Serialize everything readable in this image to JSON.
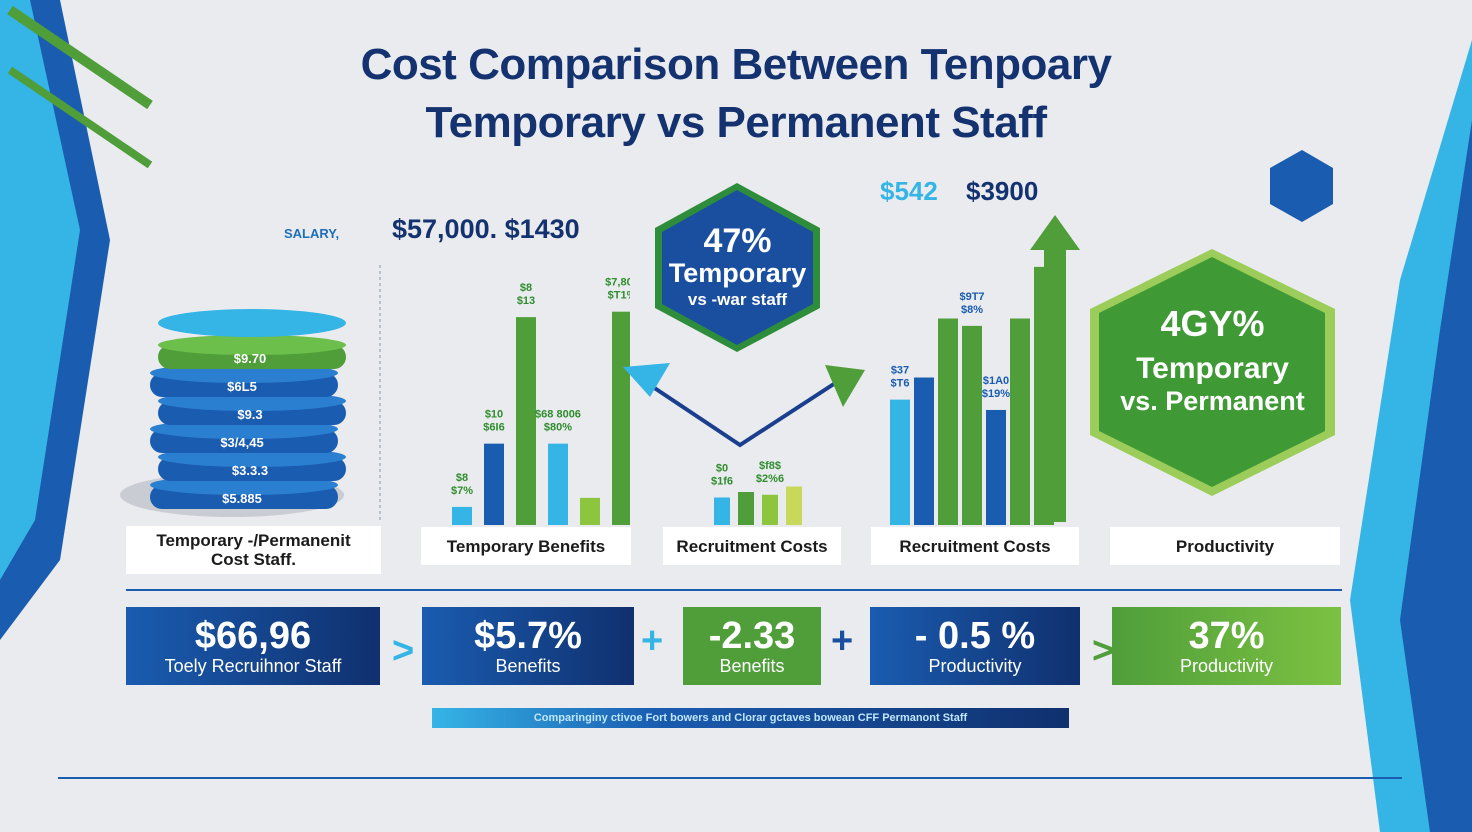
{
  "title": {
    "line1": "Cost Comparison Between Tenpoary",
    "line2": "Temporary vs Permanent Staff"
  },
  "salary": {
    "label": "SALARY,",
    "values": "$57,000. $1430"
  },
  "top_values": {
    "left": "$542",
    "right": "$3900"
  },
  "hexagons": {
    "left": {
      "percent": "47%",
      "label1": "Temporary",
      "label2": "vs -war staff"
    },
    "right": {
      "percent": "4GY%",
      "label1": "Temporary",
      "label2": "vs. Permanent"
    }
  },
  "categories": [
    {
      "line1": "Temporary -/Permanenit",
      "line2": "Cost Staff."
    },
    {
      "line1": "Temporary  Benefits",
      "line2": ""
    },
    {
      "line1": "Recruitment Costs",
      "line2": ""
    },
    {
      "line1": "Recruitment Costs",
      "line2": ""
    },
    {
      "line1": "Productivity",
      "line2": ""
    }
  ],
  "stats": [
    {
      "value": "$66,96",
      "label": "Toely Recruihnor Staff"
    },
    {
      "value": "$5.7%",
      "label": "Benefits"
    },
    {
      "value": "-2.33",
      "label": "Benefits"
    },
    {
      "value": "- 0.5 %",
      "label": "Productivity"
    },
    {
      "value": "37%",
      "label": "Productivity"
    }
  ],
  "connectors": [
    ">",
    "+",
    "+",
    ">"
  ],
  "footer": "Comparinginy ctivoe Fort bowers and Clorar gctaves bowean CFF Permanont Staff",
  "colors": {
    "navy": "#13326f",
    "blue": "#1a5cb0",
    "cyan": "#35b4e6",
    "green": "#4f9e3a",
    "light_green": "#8cc63f"
  },
  "chart_data": [
    {
      "type": "bar",
      "title": "",
      "categories": [
        "c1",
        "c2",
        "c3",
        "c4",
        "c5",
        "c6"
      ],
      "values": [
        1,
        4.5,
        11.5,
        4.5,
        1.5,
        11.8
      ],
      "data_labels": [
        "$8 $7%",
        "$10 $6I6",
        "$8 $13",
        "$68 8006 $80%",
        "",
        "$7,800 $T1%"
      ],
      "note_colors": [
        "cyan",
        "blue",
        "green",
        "green",
        "cyan",
        "green"
      ]
    },
    {
      "type": "bar",
      "title": "",
      "categories": [
        "d1",
        "d2",
        "d3",
        "d4"
      ],
      "values": [
        1,
        1.2,
        1.1,
        1.4
      ],
      "data_labels": [
        "$0 $1f6",
        "",
        "$f8$ $2%6",
        ""
      ]
    },
    {
      "type": "bar",
      "title": "",
      "categories": [
        "e1",
        "e2",
        "e3",
        "e4",
        "e5",
        "e6",
        "e7"
      ],
      "values": [
        8.5,
        10,
        14,
        13.5,
        7.8,
        14,
        17.5
      ],
      "data_labels": [
        "$37 $T6",
        "",
        "",
        "$9T7 $8%",
        "$1A0 $19%",
        "",
        ""
      ]
    },
    {
      "type": "table",
      "title": "",
      "values": [
        "$9.70",
        "$6L5",
        "$9.3",
        "$3/4,45",
        "$3.3.3",
        "$5.885"
      ]
    }
  ]
}
